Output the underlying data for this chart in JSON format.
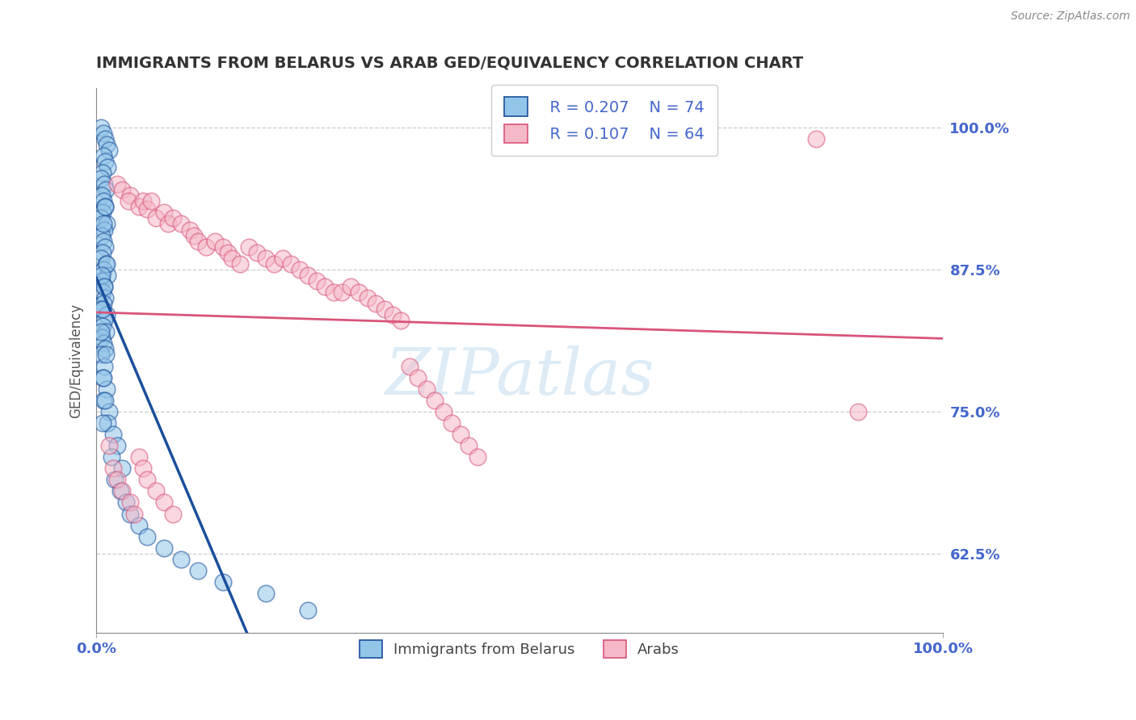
{
  "title": "IMMIGRANTS FROM BELARUS VS ARAB GED/EQUIVALENCY CORRELATION CHART",
  "source_text": "Source: ZipAtlas.com",
  "ylabel": "GED/Equivalency",
  "xlim": [
    0.0,
    1.0
  ],
  "ylim": [
    0.555,
    1.035
  ],
  "yticks": [
    0.625,
    0.75,
    0.875,
    1.0
  ],
  "ytick_labels": [
    "62.5%",
    "75.0%",
    "87.5%",
    "100.0%"
  ],
  "xticks": [
    0.0,
    1.0
  ],
  "xtick_labels": [
    "0.0%",
    "100.0%"
  ],
  "legend_r1": "R = 0.207",
  "legend_n1": "N = 74",
  "legend_r2": "R = 0.107",
  "legend_n2": "N = 64",
  "label1": "Immigrants from Belarus",
  "label2": "Arabs",
  "color_blue": "#92c5e8",
  "color_pink": "#f5b8c8",
  "trend_color_blue": "#1a4f9c",
  "trend_color_pink": "#d9547a",
  "watermark_color": "#d8e8f5",
  "title_color": "#333333",
  "axis_label_color": "#555555",
  "tick_color": "#4466cc",
  "grid_color": "#cccccc",
  "blue_scatter_x": [
    0.005,
    0.008,
    0.01,
    0.012,
    0.015,
    0.008,
    0.01,
    0.013,
    0.007,
    0.005,
    0.009,
    0.011,
    0.006,
    0.008,
    0.01,
    0.007,
    0.005,
    0.012,
    0.009,
    0.006,
    0.008,
    0.01,
    0.007,
    0.005,
    0.011,
    0.008,
    0.013,
    0.006,
    0.009,
    0.007,
    0.01,
    0.008,
    0.005,
    0.012,
    0.009,
    0.007,
    0.011,
    0.006,
    0.008,
    0.01,
    0.005,
    0.009,
    0.007,
    0.012,
    0.008,
    0.015,
    0.013,
    0.02,
    0.025,
    0.018,
    0.03,
    0.022,
    0.028,
    0.035,
    0.04,
    0.05,
    0.06,
    0.08,
    0.1,
    0.12,
    0.15,
    0.2,
    0.25,
    0.01,
    0.008,
    0.012,
    0.006,
    0.009,
    0.007,
    0.005,
    0.011,
    0.008,
    0.01,
    0.007
  ],
  "blue_scatter_y": [
    1.0,
    0.995,
    0.99,
    0.985,
    0.98,
    0.975,
    0.97,
    0.965,
    0.96,
    0.955,
    0.95,
    0.945,
    0.94,
    0.935,
    0.93,
    0.925,
    0.92,
    0.915,
    0.91,
    0.905,
    0.9,
    0.895,
    0.89,
    0.885,
    0.88,
    0.875,
    0.87,
    0.865,
    0.86,
    0.855,
    0.85,
    0.845,
    0.84,
    0.835,
    0.83,
    0.825,
    0.82,
    0.815,
    0.81,
    0.805,
    0.8,
    0.79,
    0.78,
    0.77,
    0.76,
    0.75,
    0.74,
    0.73,
    0.72,
    0.71,
    0.7,
    0.69,
    0.68,
    0.67,
    0.66,
    0.65,
    0.64,
    0.63,
    0.62,
    0.61,
    0.6,
    0.59,
    0.575,
    0.93,
    0.915,
    0.88,
    0.87,
    0.86,
    0.84,
    0.82,
    0.8,
    0.78,
    0.76,
    0.74
  ],
  "pink_scatter_x": [
    0.025,
    0.03,
    0.04,
    0.038,
    0.05,
    0.055,
    0.06,
    0.065,
    0.07,
    0.08,
    0.085,
    0.09,
    0.1,
    0.11,
    0.115,
    0.12,
    0.13,
    0.14,
    0.15,
    0.155,
    0.16,
    0.17,
    0.18,
    0.19,
    0.2,
    0.21,
    0.22,
    0.23,
    0.24,
    0.25,
    0.26,
    0.27,
    0.28,
    0.29,
    0.3,
    0.31,
    0.32,
    0.33,
    0.34,
    0.35,
    0.36,
    0.37,
    0.38,
    0.39,
    0.4,
    0.41,
    0.42,
    0.43,
    0.44,
    0.45,
    0.9,
    0.85,
    0.015,
    0.02,
    0.025,
    0.03,
    0.04,
    0.045,
    0.05,
    0.055,
    0.06,
    0.07,
    0.08,
    0.09
  ],
  "pink_scatter_y": [
    0.95,
    0.945,
    0.94,
    0.935,
    0.93,
    0.935,
    0.928,
    0.935,
    0.92,
    0.925,
    0.915,
    0.92,
    0.915,
    0.91,
    0.905,
    0.9,
    0.895,
    0.9,
    0.895,
    0.89,
    0.885,
    0.88,
    0.895,
    0.89,
    0.885,
    0.88,
    0.885,
    0.88,
    0.875,
    0.87,
    0.865,
    0.86,
    0.855,
    0.855,
    0.86,
    0.855,
    0.85,
    0.845,
    0.84,
    0.835,
    0.83,
    0.79,
    0.78,
    0.77,
    0.76,
    0.75,
    0.74,
    0.73,
    0.72,
    0.71,
    0.75,
    0.99,
    0.72,
    0.7,
    0.69,
    0.68,
    0.67,
    0.66,
    0.71,
    0.7,
    0.69,
    0.68,
    0.67,
    0.66
  ]
}
